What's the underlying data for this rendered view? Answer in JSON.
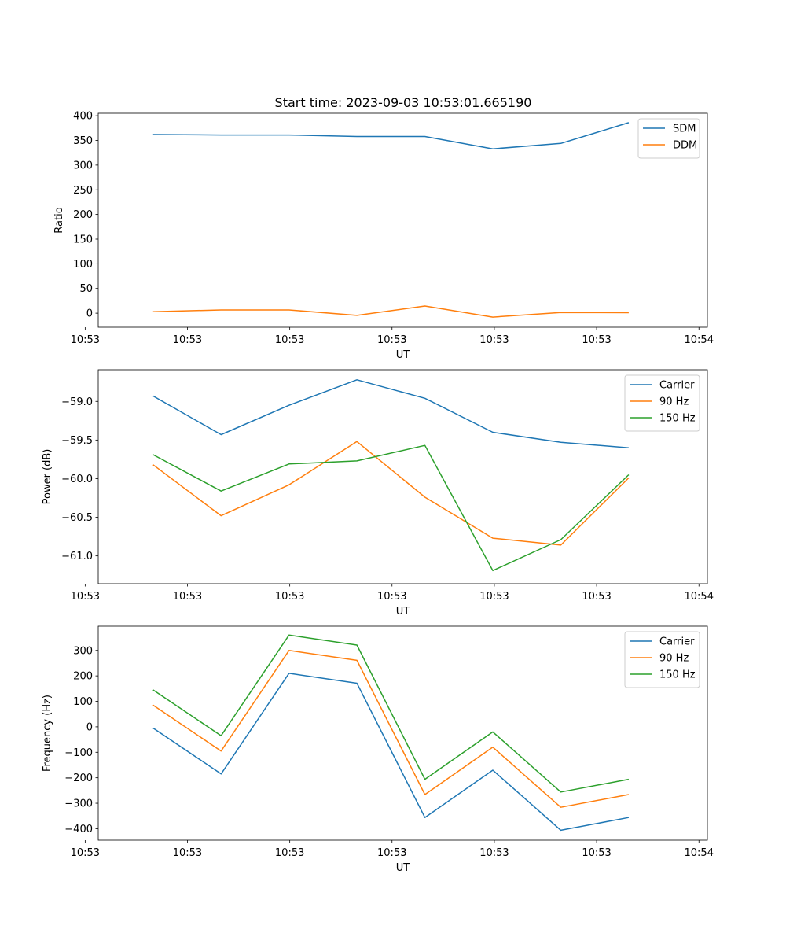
{
  "figure_title": "Start time: 2023-09-03 10:53:01.665190",
  "chart_data": [
    {
      "type": "line",
      "ylabel": "Ratio",
      "xlabel": "UT",
      "x": [
        1,
        2,
        3,
        4,
        5,
        6,
        7,
        8
      ],
      "xlim": [
        0.1925,
        9.1575
      ],
      "xticks": [
        {
          "value": 0.0,
          "label": "10:53"
        },
        {
          "value": 1.505,
          "label": "10:53"
        },
        {
          "value": 3.011,
          "label": "10:53"
        },
        {
          "value": 4.516,
          "label": "10:53"
        },
        {
          "value": 6.022,
          "label": "10:53"
        },
        {
          "value": 7.527,
          "label": "10:53"
        },
        {
          "value": 9.033,
          "label": "10:54"
        }
      ],
      "ylim": [
        -28.5,
        405
      ],
      "yticks": [
        0,
        50,
        100,
        150,
        200,
        250,
        300,
        350,
        400
      ],
      "legend_position": "upper right",
      "series": [
        {
          "name": "SDM",
          "color": "#1f77b4",
          "values": [
            362,
            361,
            361,
            358,
            358,
            333,
            344,
            386
          ]
        },
        {
          "name": "DDM",
          "color": "#ff7f0e",
          "values": [
            3,
            6.5,
            6.5,
            -4.5,
            14.5,
            -8,
            1.5,
            1
          ]
        }
      ]
    },
    {
      "type": "line",
      "ylabel": "Power (dB)",
      "xlabel": "UT",
      "x": [
        1,
        2,
        3,
        4,
        5,
        6,
        7,
        8
      ],
      "xlim": [
        0.1925,
        9.1575
      ],
      "xticks": [
        {
          "value": 0.0,
          "label": "10:53"
        },
        {
          "value": 1.505,
          "label": "10:53"
        },
        {
          "value": 3.011,
          "label": "10:53"
        },
        {
          "value": 4.516,
          "label": "10:53"
        },
        {
          "value": 6.022,
          "label": "10:53"
        },
        {
          "value": 7.527,
          "label": "10:53"
        },
        {
          "value": 9.033,
          "label": "10:54"
        }
      ],
      "ylim": [
        -61.36,
        -58.59
      ],
      "yticks": [
        -61.0,
        -60.5,
        -60.0,
        -59.5,
        -59.0
      ],
      "ytick_labels": [
        "−61.0",
        "−60.5",
        "−60.0",
        "−59.5",
        "−59.0"
      ],
      "legend_position": "upper right",
      "series": [
        {
          "name": "Carrier",
          "color": "#1f77b4",
          "values": [
            -58.93,
            -59.43,
            -59.05,
            -58.72,
            -58.96,
            -59.4,
            -59.53,
            -59.6
          ]
        },
        {
          "name": "90 Hz",
          "color": "#ff7f0e",
          "values": [
            -59.82,
            -60.48,
            -60.08,
            -59.52,
            -60.24,
            -60.77,
            -60.86,
            -59.99
          ]
        },
        {
          "name": "150 Hz",
          "color": "#2ca02c",
          "values": [
            -59.69,
            -60.16,
            -59.81,
            -59.77,
            -59.57,
            -61.19,
            -60.79,
            -59.95
          ]
        }
      ]
    },
    {
      "type": "line",
      "ylabel": "Frequency (Hz)",
      "xlabel": "UT",
      "x": [
        1,
        2,
        3,
        4,
        5,
        6,
        7,
        8
      ],
      "xlim": [
        0.1925,
        9.1575
      ],
      "xticks": [
        {
          "value": 0.0,
          "label": "10:53"
        },
        {
          "value": 1.505,
          "label": "10:53"
        },
        {
          "value": 3.011,
          "label": "10:53"
        },
        {
          "value": 4.516,
          "label": "10:53"
        },
        {
          "value": 6.022,
          "label": "10:53"
        },
        {
          "value": 7.527,
          "label": "10:53"
        },
        {
          "value": 9.033,
          "label": "10:54"
        }
      ],
      "ylim": [
        -445,
        395
      ],
      "yticks": [
        -400,
        -300,
        -200,
        -100,
        0,
        100,
        200,
        300
      ],
      "ytick_labels": [
        "−400",
        "−300",
        "−200",
        "−100",
        "0",
        "100",
        "200",
        "300"
      ],
      "legend_position": "upper right",
      "series": [
        {
          "name": "Carrier",
          "color": "#1f77b4",
          "values": [
            -5,
            -185,
            210,
            171,
            -356,
            -170,
            -406,
            -356
          ]
        },
        {
          "name": "90 Hz",
          "color": "#ff7f0e",
          "values": [
            85,
            -95,
            300,
            261,
            -266,
            -80,
            -316,
            -266
          ]
        },
        {
          "name": "150 Hz",
          "color": "#2ca02c",
          "values": [
            145,
            -35,
            360,
            321,
            -206,
            -20,
            -256,
            -206
          ]
        }
      ]
    }
  ]
}
